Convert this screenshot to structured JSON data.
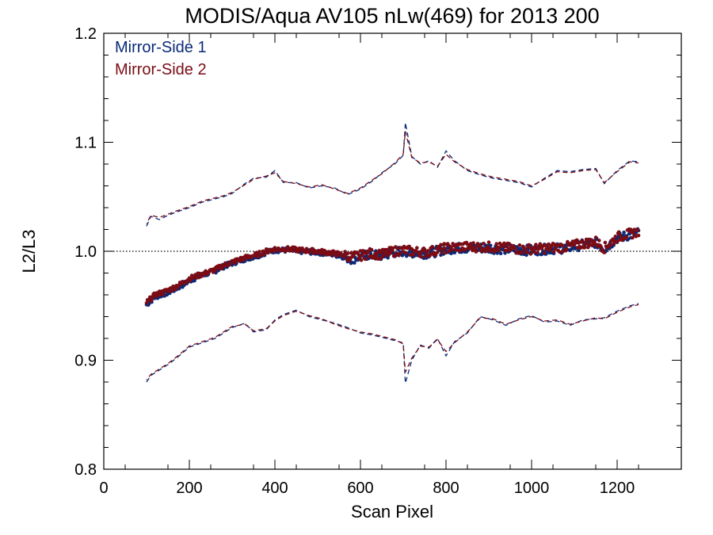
{
  "chart_data": {
    "type": "scatter",
    "title": "MODIS/Aqua AV105 nLw(469) for 2013 200",
    "xlabel": "Scan Pixel",
    "ylabel": "L2/L3",
    "xlim": [
      0,
      1350
    ],
    "ylim": [
      0.8,
      1.2
    ],
    "x_ticks": [
      0,
      200,
      400,
      600,
      800,
      1000,
      1200
    ],
    "x_tick_labels": [
      "0",
      "200",
      "400",
      "600",
      "800",
      "1000",
      "1200"
    ],
    "y_ticks": [
      0.8,
      0.9,
      1.0,
      1.1,
      1.2
    ],
    "y_tick_labels": [
      "0.8",
      "0.9",
      "1.0",
      "1.1",
      "1.2"
    ],
    "reference_line": {
      "y": 1.0,
      "style": "dotted"
    },
    "legend_position": "top-left",
    "colors": {
      "ms1": "#0a2a78",
      "ms2": "#7a0c16"
    },
    "series": [
      {
        "name": "Mirror-Side 1",
        "color": "#0a2a78",
        "mean_x": [
          100,
          120,
          150,
          180,
          200,
          230,
          260,
          280,
          300,
          330,
          360,
          380,
          400,
          430,
          460,
          500,
          540,
          580,
          600,
          620,
          650,
          680,
          700,
          720,
          750,
          780,
          800,
          830,
          860,
          900,
          940,
          980,
          1000,
          1040,
          1080,
          1120,
          1150,
          1170,
          1200,
          1230,
          1250
        ],
        "mean_y": [
          0.951,
          0.958,
          0.962,
          0.968,
          0.973,
          0.978,
          0.982,
          0.986,
          0.989,
          0.993,
          0.996,
          0.999,
          1.001,
          1.001,
          1.0,
          0.999,
          0.997,
          0.993,
          0.995,
          0.997,
          0.996,
          0.999,
          1.0,
          0.999,
          0.998,
          1.0,
          1.002,
          1.003,
          1.003,
          1.003,
          1.002,
          1.001,
          1.001,
          1.002,
          1.003,
          1.006,
          1.008,
          1.002,
          1.012,
          1.015,
          1.017
        ],
        "upper_x": [
          100,
          110,
          130,
          150,
          170,
          200,
          230,
          260,
          280,
          300,
          330,
          350,
          380,
          400,
          420,
          450,
          480,
          510,
          540,
          570,
          600,
          630,
          650,
          680,
          700,
          705,
          720,
          740,
          760,
          780,
          800,
          820,
          850,
          880,
          910,
          940,
          970,
          1000,
          1030,
          1060,
          1090,
          1120,
          1150,
          1170,
          1200,
          1230,
          1250
        ],
        "upper_y": [
          1.023,
          1.032,
          1.029,
          1.033,
          1.036,
          1.04,
          1.045,
          1.048,
          1.05,
          1.053,
          1.062,
          1.067,
          1.068,
          1.074,
          1.063,
          1.063,
          1.058,
          1.06,
          1.058,
          1.052,
          1.057,
          1.065,
          1.072,
          1.08,
          1.088,
          1.118,
          1.087,
          1.08,
          1.083,
          1.077,
          1.092,
          1.083,
          1.074,
          1.07,
          1.067,
          1.065,
          1.063,
          1.059,
          1.067,
          1.074,
          1.073,
          1.075,
          1.076,
          1.062,
          1.074,
          1.083,
          1.082
        ],
        "lower_x": [
          100,
          110,
          130,
          150,
          170,
          200,
          230,
          260,
          280,
          300,
          330,
          350,
          380,
          400,
          420,
          450,
          480,
          510,
          540,
          570,
          600,
          630,
          650,
          680,
          700,
          705,
          720,
          740,
          760,
          780,
          800,
          820,
          850,
          880,
          910,
          940,
          970,
          1000,
          1030,
          1060,
          1090,
          1120,
          1150,
          1170,
          1200,
          1230,
          1250
        ],
        "lower_y": [
          0.88,
          0.886,
          0.891,
          0.896,
          0.902,
          0.912,
          0.916,
          0.92,
          0.925,
          0.93,
          0.934,
          0.926,
          0.928,
          0.937,
          0.942,
          0.946,
          0.94,
          0.937,
          0.934,
          0.93,
          0.925,
          0.923,
          0.921,
          0.918,
          0.916,
          0.879,
          0.9,
          0.914,
          0.911,
          0.92,
          0.904,
          0.917,
          0.925,
          0.94,
          0.937,
          0.932,
          0.938,
          0.941,
          0.935,
          0.936,
          0.932,
          0.937,
          0.938,
          0.939,
          0.945,
          0.95,
          0.952
        ]
      },
      {
        "name": "Mirror-Side 2",
        "color": "#7a0c16",
        "mean_x": [
          100,
          120,
          150,
          180,
          200,
          230,
          260,
          280,
          300,
          330,
          360,
          380,
          400,
          430,
          460,
          500,
          540,
          580,
          600,
          620,
          650,
          680,
          700,
          720,
          750,
          780,
          800,
          830,
          860,
          900,
          940,
          980,
          1000,
          1040,
          1080,
          1120,
          1150,
          1170,
          1200,
          1230,
          1250
        ],
        "mean_y": [
          0.953,
          0.96,
          0.964,
          0.97,
          0.975,
          0.979,
          0.983,
          0.987,
          0.99,
          0.994,
          0.997,
          1.0,
          1.002,
          1.002,
          1.001,
          1.0,
          0.998,
          0.995,
          0.996,
          0.998,
          0.997,
          1.0,
          1.001,
          1.0,
          0.999,
          1.001,
          1.003,
          1.004,
          1.004,
          1.004,
          1.003,
          1.002,
          1.002,
          1.003,
          1.004,
          1.007,
          1.009,
          1.003,
          1.013,
          1.016,
          1.018
        ],
        "upper_x": [
          100,
          110,
          130,
          150,
          170,
          200,
          230,
          260,
          280,
          300,
          330,
          350,
          380,
          400,
          420,
          450,
          480,
          510,
          540,
          570,
          600,
          630,
          650,
          680,
          700,
          705,
          720,
          740,
          760,
          780,
          800,
          820,
          850,
          880,
          910,
          940,
          970,
          1000,
          1030,
          1060,
          1090,
          1120,
          1150,
          1170,
          1200,
          1230,
          1250
        ],
        "upper_y": [
          1.025,
          1.033,
          1.031,
          1.034,
          1.037,
          1.041,
          1.046,
          1.049,
          1.051,
          1.054,
          1.061,
          1.066,
          1.069,
          1.072,
          1.064,
          1.062,
          1.059,
          1.061,
          1.057,
          1.053,
          1.058,
          1.066,
          1.071,
          1.081,
          1.089,
          1.11,
          1.086,
          1.081,
          1.082,
          1.078,
          1.089,
          1.082,
          1.075,
          1.071,
          1.068,
          1.066,
          1.064,
          1.06,
          1.066,
          1.073,
          1.072,
          1.074,
          1.075,
          1.063,
          1.073,
          1.082,
          1.081
        ],
        "lower_x": [
          100,
          110,
          130,
          150,
          170,
          200,
          230,
          260,
          280,
          300,
          330,
          350,
          380,
          400,
          420,
          450,
          480,
          510,
          540,
          570,
          600,
          630,
          650,
          680,
          700,
          705,
          720,
          740,
          760,
          780,
          800,
          820,
          850,
          880,
          910,
          940,
          970,
          1000,
          1030,
          1060,
          1090,
          1120,
          1150,
          1170,
          1200,
          1230,
          1250
        ],
        "lower_y": [
          0.882,
          0.887,
          0.892,
          0.897,
          0.903,
          0.913,
          0.917,
          0.921,
          0.926,
          0.931,
          0.933,
          0.927,
          0.929,
          0.936,
          0.941,
          0.945,
          0.941,
          0.938,
          0.933,
          0.929,
          0.926,
          0.924,
          0.922,
          0.919,
          0.915,
          0.889,
          0.902,
          0.913,
          0.912,
          0.919,
          0.908,
          0.916,
          0.926,
          0.939,
          0.938,
          0.933,
          0.937,
          0.94,
          0.936,
          0.937,
          0.933,
          0.936,
          0.939,
          0.938,
          0.944,
          0.949,
          0.951
        ]
      }
    ]
  }
}
